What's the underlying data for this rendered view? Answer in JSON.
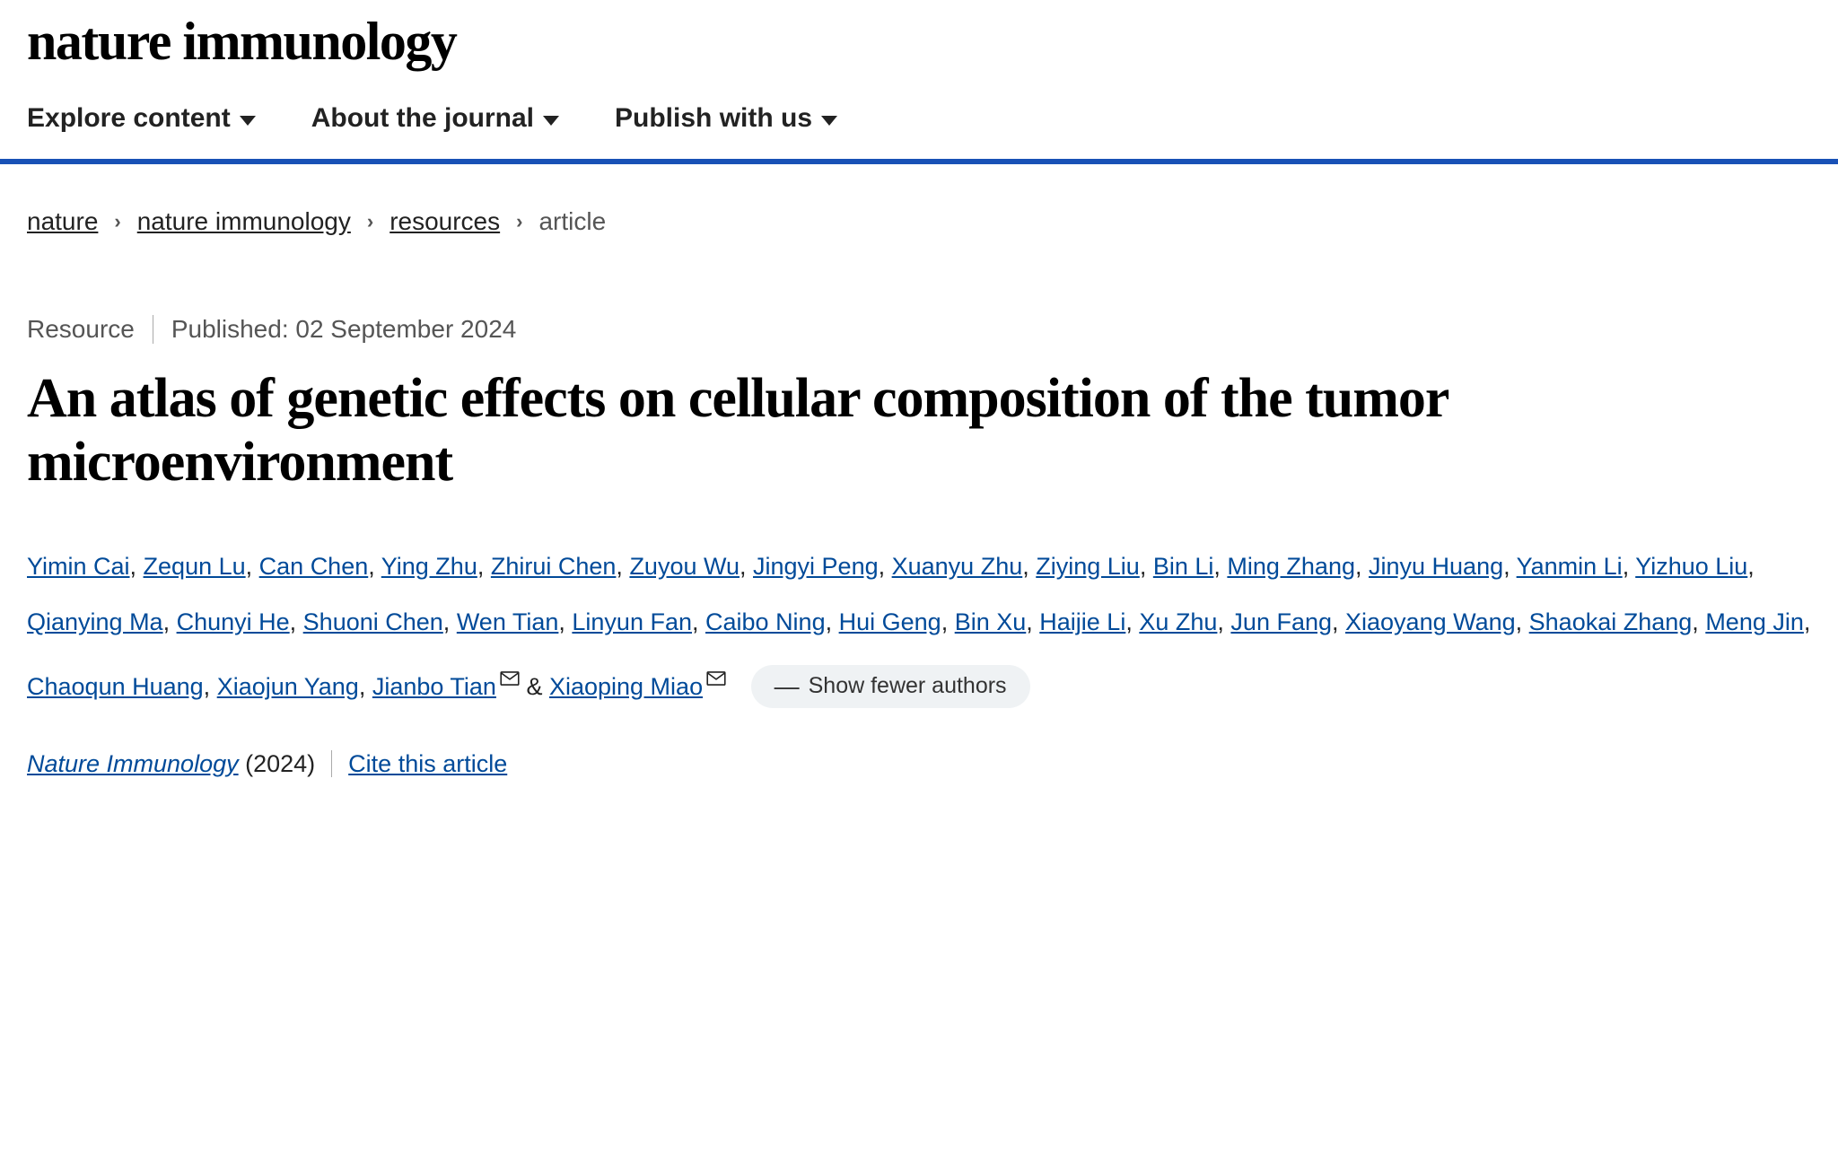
{
  "logo": "nature immunology",
  "nav": {
    "explore": "Explore content",
    "about": "About the journal",
    "publish": "Publish with us"
  },
  "breadcrumb": {
    "items": [
      {
        "label": "nature",
        "link": true
      },
      {
        "label": "nature immunology",
        "link": true
      },
      {
        "label": "resources",
        "link": true
      },
      {
        "label": "article",
        "link": false
      }
    ]
  },
  "meta": {
    "type": "Resource",
    "published": "Published: 02 September 2024"
  },
  "title": "An atlas of genetic effects on cellular composition of the tumor microenvironment",
  "authors": [
    "Yimin Cai",
    "Zequn Lu",
    "Can Chen",
    "Ying Zhu",
    "Zhirui Chen",
    "Zuyou Wu",
    "Jingyi Peng",
    "Xuanyu Zhu",
    "Ziying Liu",
    "Bin Li",
    "Ming Zhang",
    "Jinyu Huang",
    "Yanmin Li",
    "Yizhuo Liu",
    "Qianying Ma",
    "Chunyi He",
    "Shuoni Chen",
    "Wen Tian",
    "Linyun Fan",
    "Caibo Ning",
    "Hui Geng",
    "Bin Xu",
    "Haijie Li",
    "Xu Zhu",
    "Jun Fang",
    "Xiaoyang Wang",
    "Shaokai Zhang",
    "Meng Jin",
    "Chaoqun Huang",
    "Xiaojun Yang",
    "Jianbo Tian",
    "Xiaoping Miao"
  ],
  "corresponding_indices": [
    30,
    31
  ],
  "show_fewer": "Show fewer authors",
  "citation": {
    "journal": "Nature Immunology",
    "year": "(2024)",
    "cite": "Cite this article"
  },
  "colors": {
    "accent": "#1951b6",
    "link": "#004a99",
    "text": "#222222",
    "muted": "#555555",
    "pill_bg": "#eff2f4"
  }
}
